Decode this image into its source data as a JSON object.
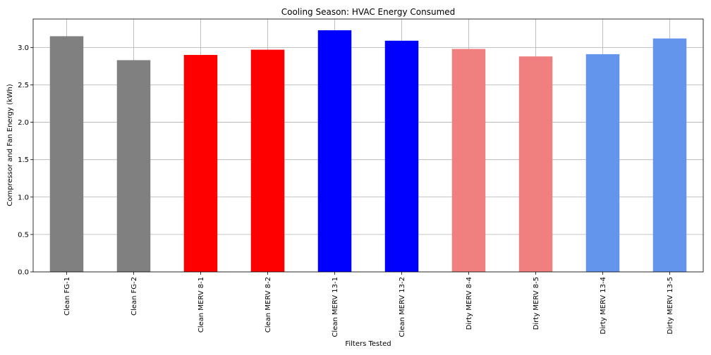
{
  "chart_data": {
    "type": "bar",
    "title": "Cooling Season: HVAC Energy Consumed",
    "xlabel": "Filters Tested",
    "ylabel": "Compressor and Fan Energy (kWh)",
    "categories": [
      "Clean FG-1",
      "Clean FG-2",
      "Clean MERV 8-1",
      "Clean MERV 8-2",
      "Clean MERV 13-1",
      "Clean MERV 13-2",
      "Dirty MERV 8-4",
      "Dirty MERV 8-5",
      "Dirty MERV 13-4",
      "Dirty MERV 13-5"
    ],
    "values": [
      3.15,
      2.83,
      2.9,
      2.97,
      3.23,
      3.09,
      2.98,
      2.88,
      2.91,
      3.12
    ],
    "colors": [
      "#808080",
      "#808080",
      "#ff0000",
      "#ff0000",
      "#0000ff",
      "#0000ff",
      "#f08080",
      "#f08080",
      "#6495ed",
      "#6495ed"
    ],
    "ylim": [
      0,
      3.38
    ],
    "yticks": [
      "0.0",
      "0.5",
      "1.0",
      "1.5",
      "2.0",
      "2.5",
      "3.0"
    ],
    "grid": true
  }
}
